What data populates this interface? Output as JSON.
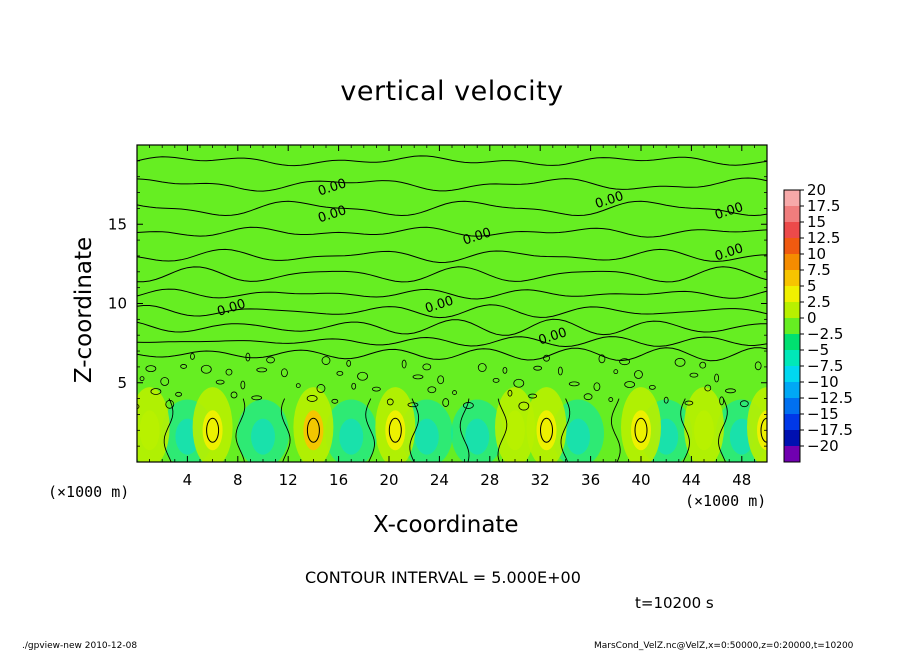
{
  "chart_data": {
    "type": "heatmap",
    "title": "vertical velocity",
    "xlabel": "X-coordinate",
    "ylabel": "Z-coordinate",
    "x_unit_left": "(×1000 m)",
    "x_unit_right": "(×1000 m)",
    "xlim": [
      0,
      50
    ],
    "ylim": [
      0,
      20
    ],
    "x_ticks": [
      "4",
      "8",
      "12",
      "16",
      "20",
      "24",
      "28",
      "32",
      "36",
      "40",
      "44",
      "48"
    ],
    "x_tick_values": [
      4,
      8,
      12,
      16,
      20,
      24,
      28,
      32,
      36,
      40,
      44,
      48
    ],
    "y_ticks": [
      "5",
      "10",
      "15"
    ],
    "y_tick_values": [
      5,
      10,
      15
    ],
    "contour_label": "0.00",
    "colorbar": {
      "labels": [
        "20",
        "17.5",
        "15",
        "12.5",
        "10",
        "7.5",
        "5",
        "2.5",
        "0",
        "−2.5",
        "−5",
        "−7.5",
        "−10",
        "−12.5",
        "−15",
        "−17.5",
        "−20"
      ],
      "values": [
        20,
        17.5,
        15,
        12.5,
        10,
        7.5,
        5,
        2.5,
        0,
        -2.5,
        -5,
        -7.5,
        -10,
        -12.5,
        -15,
        -17.5,
        -20
      ],
      "colors": [
        "#f7a9a9",
        "#f07d7d",
        "#ec4a4a",
        "#f05a10",
        "#f58c00",
        "#f7c400",
        "#f0f000",
        "#b8f000",
        "#66ee22",
        "#00e070",
        "#00e8b8",
        "#00d8f0",
        "#00a8f5",
        "#0070f0",
        "#0038e8",
        "#0010b0",
        "#7000b0"
      ]
    },
    "updraft_x": [
      1,
      6,
      14,
      20.5,
      30,
      32.5,
      40,
      45,
      50
    ],
    "updraft_peak": [
      4.5,
      5.5,
      8.5,
      5,
      4,
      6,
      5,
      4,
      5.5
    ],
    "downdraft_x": [
      4,
      10,
      17,
      23,
      27,
      35,
      42,
      48
    ],
    "grid": false,
    "legend": "colorbar-right"
  },
  "contour_interval": "CONTOUR INTERVAL = 5.000E+00",
  "time_label": "t=10200 s",
  "footer_left": "./gpview-new  2010-12-08",
  "footer_right": "MarsCond_VelZ.nc@VelZ,x=0:50000,z=0:20000,t=10200"
}
